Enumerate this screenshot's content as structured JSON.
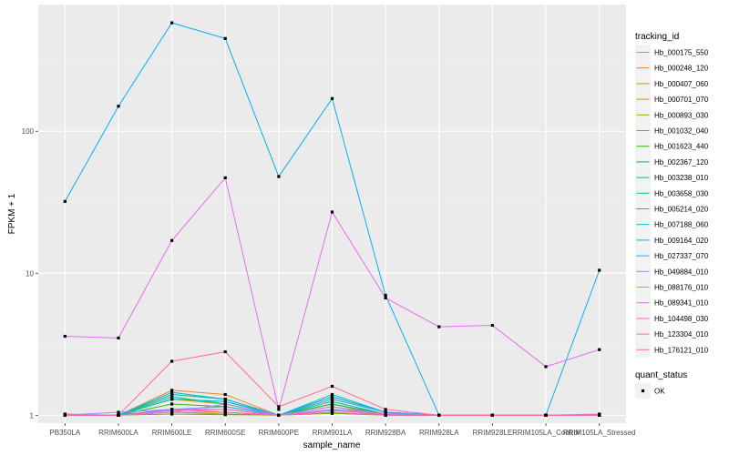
{
  "chart_data": {
    "type": "line",
    "xlabel": "sample_name",
    "ylabel": "FPKM + 1",
    "y_scale": "log10",
    "ylim": [
      0.88,
      780
    ],
    "grid": true,
    "legend_placement": "right",
    "categories": [
      "PB350LA",
      "RRIM600LA",
      "RRIM600LE",
      "RRIM600SE",
      "RRIM600PE",
      "RRIM901LA",
      "RRIM928BA",
      "RRIM928LA",
      "RRIM928LE",
      "RRIM105LA_Control",
      "RRIM105LA_Stressed"
    ],
    "y_ticks": [
      1,
      10,
      100
    ],
    "y_tick_labels": [
      "1",
      "10",
      "100"
    ],
    "series": [
      {
        "name": "Hb_000175_550",
        "color": "#F8766D",
        "values": [
          1,
          1,
          1.4,
          1.3,
          1,
          1.2,
          1,
          1,
          1,
          1,
          1
        ]
      },
      {
        "name": "Hb_000248_120",
        "color": "#EA8331",
        "values": [
          1,
          1,
          1.5,
          1.4,
          1,
          1.3,
          1.05,
          1,
          1,
          1,
          1
        ]
      },
      {
        "name": "Hb_000407_060",
        "color": "#D89000",
        "values": [
          1,
          1,
          1.3,
          1.2,
          1,
          1.2,
          1.02,
          1,
          1,
          1,
          1
        ]
      },
      {
        "name": "Hb_000701_070",
        "color": "#C09B00",
        "values": [
          1,
          1,
          1.1,
          1.05,
          1,
          1.1,
          1,
          1,
          1,
          1,
          1
        ]
      },
      {
        "name": "Hb_000893_030",
        "color": "#A3A500",
        "values": [
          1,
          1,
          1.05,
          1.02,
          1,
          1.05,
          1,
          1,
          1,
          1,
          1
        ]
      },
      {
        "name": "Hb_001032_040",
        "color": "#7CAE00",
        "values": [
          1,
          1,
          1.02,
          1.01,
          1,
          1.03,
          1,
          1,
          1,
          1,
          1
        ]
      },
      {
        "name": "Hb_001623_440",
        "color": "#39B600",
        "values": [
          1,
          1,
          1.2,
          1.15,
          1,
          1.15,
          1,
          1,
          1,
          1,
          1
        ]
      },
      {
        "name": "Hb_002367_120",
        "color": "#00BB4E",
        "values": [
          1,
          1,
          1.3,
          1.25,
          1,
          1.2,
          1.02,
          1,
          1,
          1,
          1
        ]
      },
      {
        "name": "Hb_003238_010",
        "color": "#00BF7D",
        "values": [
          1,
          1,
          1.35,
          1.2,
          1,
          1.25,
          1.02,
          1,
          1,
          1,
          1
        ]
      },
      {
        "name": "Hb_003658_030",
        "color": "#00C1A3",
        "values": [
          1,
          1,
          1.4,
          1.3,
          1,
          1.35,
          1.05,
          1,
          1,
          1,
          1
        ]
      },
      {
        "name": "Hb_005214_020",
        "color": "#00BFC4",
        "values": [
          1,
          1,
          1.45,
          1.3,
          1,
          1.4,
          1.05,
          1,
          1,
          1,
          1
        ]
      },
      {
        "name": "Hb_007188_060",
        "color": "#00BAE0",
        "values": [
          1,
          1,
          1.3,
          1.25,
          1,
          1.35,
          1.05,
          1,
          1,
          1,
          1
        ]
      },
      {
        "name": "Hb_009164_020",
        "color": "#00B0F6",
        "values": [
          32,
          150,
          580,
          450,
          48,
          170,
          7,
          1,
          1,
          1,
          10.5
        ]
      },
      {
        "name": "Hb_027337_070",
        "color": "#35A2FF",
        "values": [
          1,
          1,
          1.1,
          1.15,
          1,
          1.3,
          1.05,
          1,
          1,
          1,
          1
        ]
      },
      {
        "name": "Hb_049884_010",
        "color": "#9590FF",
        "values": [
          1,
          1.05,
          1.1,
          1.1,
          1,
          1.1,
          1.03,
          1,
          1,
          1,
          1
        ]
      },
      {
        "name": "Hb_088176_010",
        "color": "#C77CFF",
        "values": [
          1,
          1,
          1.05,
          1.2,
          1,
          1.15,
          1.02,
          1,
          1,
          1,
          1
        ]
      },
      {
        "name": "Hb_089341_010",
        "color": "#E76BF3",
        "values": [
          3.6,
          3.5,
          17,
          47,
          1.1,
          27,
          6.7,
          4.2,
          4.3,
          2.2,
          2.9
        ]
      },
      {
        "name": "Hb_104498_030",
        "color": "#FA62DB",
        "values": [
          1,
          1,
          1.05,
          1.05,
          1,
          1.05,
          1,
          1,
          1,
          1,
          1
        ]
      },
      {
        "name": "Hb_123304_010",
        "color": "#FF62BC",
        "values": [
          1,
          1,
          1.08,
          1.1,
          1,
          1.08,
          1.02,
          1,
          1,
          1,
          1
        ]
      },
      {
        "name": "Hb_176121_010",
        "color": "#FF6C91",
        "values": [
          1.02,
          1,
          2.4,
          2.8,
          1.15,
          1.6,
          1.1,
          1,
          1,
          1,
          1.02
        ]
      }
    ],
    "legends": {
      "tracking_id_title": "tracking_id",
      "quant_status_title": "quant_status",
      "quant_status_items": [
        "OK"
      ]
    }
  }
}
